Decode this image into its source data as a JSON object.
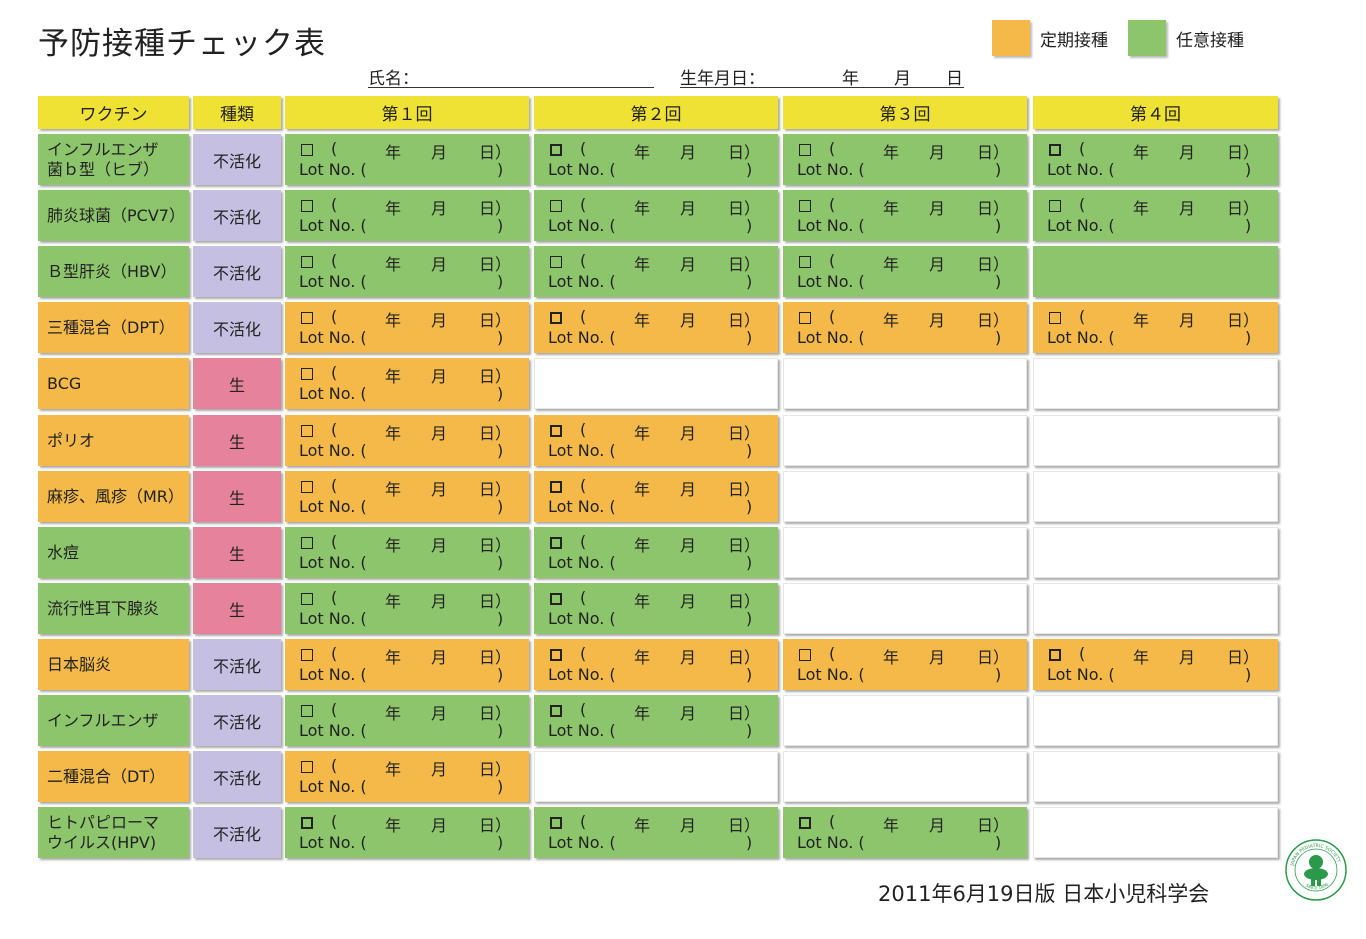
{
  "title": "予防接種チェック表",
  "legend": [
    {
      "label": "定期接種",
      "color": "#f4b948"
    },
    {
      "label": "任意接種",
      "color": "#8dc56c"
    }
  ],
  "name_label": "氏名：",
  "birth_label": "生年月日：",
  "birth_units": [
    "年",
    "月",
    "日"
  ],
  "headers": [
    "ワクチン",
    "種類",
    "第１回",
    "第２回",
    "第３回",
    "第４回"
  ],
  "dose_text": {
    "paren_open": "(",
    "year": "年",
    "month": "月",
    "day": "日）",
    "lot": "Lot No. (",
    "close": ")"
  },
  "rows": [
    {
      "name": "インフルエンザ\n菌ｂ型（ヒブ）",
      "kind": "不活化",
      "kind_color": "lavender",
      "cat": "optional",
      "doses": 4,
      "bold": [
        2,
        4
      ]
    },
    {
      "name": "肺炎球菌（PCV7）",
      "kind": "不活化",
      "kind_color": "lavender",
      "cat": "optional",
      "doses": 4,
      "bold": []
    },
    {
      "name": "Ｂ型肝炎（HBV）",
      "kind": "不活化",
      "kind_color": "lavender",
      "cat": "optional",
      "doses": 3,
      "filled_empty": 4,
      "bold": []
    },
    {
      "name": "三種混合（DPT）",
      "kind": "不活化",
      "kind_color": "lavender",
      "cat": "routine",
      "doses": 4,
      "bold": [
        2
      ]
    },
    {
      "name": "BCG",
      "kind": "生",
      "kind_color": "pink",
      "cat": "routine",
      "doses": 1,
      "bold": []
    },
    {
      "name": "ポリオ",
      "kind": "生",
      "kind_color": "pink",
      "cat": "routine",
      "doses": 2,
      "bold": [
        2
      ]
    },
    {
      "name": "麻疹、風疹（MR）",
      "kind": "生",
      "kind_color": "pink",
      "cat": "routine",
      "doses": 2,
      "bold": [
        2
      ]
    },
    {
      "name": "水痘",
      "kind": "生",
      "kind_color": "pink",
      "cat": "optional",
      "doses": 2,
      "bold": [
        2
      ]
    },
    {
      "name": "流行性耳下腺炎",
      "kind": "生",
      "kind_color": "pink",
      "cat": "optional",
      "doses": 2,
      "bold": [
        2
      ]
    },
    {
      "name": "日本脳炎",
      "kind": "不活化",
      "kind_color": "lavender",
      "cat": "routine",
      "doses": 4,
      "bold": [
        2,
        4
      ]
    },
    {
      "name": "インフルエンザ",
      "kind": "不活化",
      "kind_color": "lavender",
      "cat": "optional",
      "doses": 2,
      "bold": [
        2
      ]
    },
    {
      "name": "二種混合（DT）",
      "kind": "不活化",
      "kind_color": "lavender",
      "cat": "routine",
      "doses": 1,
      "bold": []
    },
    {
      "name": "ヒトパピローマ\nウイルス(HPV)",
      "kind": "不活化",
      "kind_color": "lavender",
      "cat": "optional",
      "doses": 3,
      "bold": [
        1,
        2,
        3
      ]
    }
  ],
  "colors": {
    "routine": "#f4b948",
    "optional": "#8dc56c",
    "lavender": "#c5c0e2",
    "pink": "#e6829a",
    "header": "#f0e234"
  },
  "footer": "2011年6月19日版 日本小児科学会",
  "logo": {
    "top_text": "JAPAN PEDIATRIC SOCIETY",
    "bottom_text": "SINCE 1896"
  }
}
